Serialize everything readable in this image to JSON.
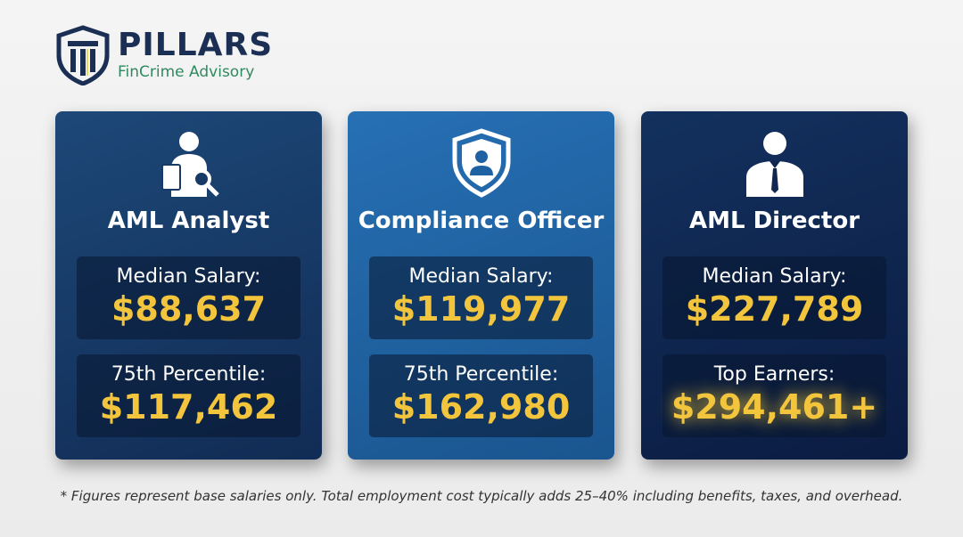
{
  "logo": {
    "name": "PILLARS",
    "tagline": "FinCrime Advisory"
  },
  "cards": [
    {
      "title": "AML Analyst",
      "icon": "analyst-magnifier-icon",
      "rows": [
        {
          "label": "Median Salary:",
          "value": "$88,637"
        },
        {
          "label": "75th Percentile:",
          "value": "$117,462"
        }
      ]
    },
    {
      "title": "Compliance Officer",
      "icon": "shield-user-icon",
      "rows": [
        {
          "label": "Median Salary:",
          "value": "$119,977"
        },
        {
          "label": "75th Percentile:",
          "value": "$162,980"
        }
      ]
    },
    {
      "title": "AML Director",
      "icon": "executive-icon",
      "rows": [
        {
          "label": "Median Salary:",
          "value": "$227,789"
        },
        {
          "label": "Top Earners:",
          "value": "$294,461+"
        }
      ]
    }
  ],
  "footnote": "* Figures represent base salaries only. Total employment cost typically adds 25–40% including benefits, taxes, and overhead.",
  "colors": {
    "gold": "#f3c53c",
    "navy": "#1b2f55",
    "green": "#2f8a5f"
  }
}
